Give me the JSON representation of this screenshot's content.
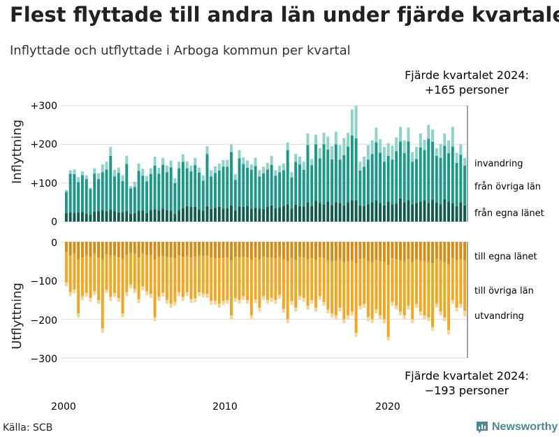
{
  "header": {
    "title": "Flest flyttade till andra län under fjärde kvartalet",
    "subtitle": "Inflyttade och utflyttade i Arboga kommun per kvartal"
  },
  "footer": {
    "source": "Källa: SCB",
    "brand": "Newsworthy"
  },
  "colors": {
    "in_local": "#0f5c4d",
    "in_other": "#1a9987",
    "in_abroad": "#8fd3c8",
    "out_local": "#d98a10",
    "out_other": "#f6a51e",
    "out_abroad": "#fbd38f",
    "grid": "#d9d9d9",
    "text": "#222222",
    "brand": "#4c8a8d"
  },
  "chart_data": {
    "type": "bar",
    "stacked": true,
    "x_label": "",
    "x_ticks": [
      "2000",
      "2010",
      "2020"
    ],
    "period": "2000Q1–2024Q4",
    "panels": [
      {
        "name": "inflyttning",
        "ylabel": "Inflyttning",
        "ylim": [
          0,
          300
        ],
        "y_ticks": [
          "0",
          "+100",
          "+200",
          "+300"
        ],
        "y_tick_values": [
          0,
          100,
          200,
          300
        ],
        "series_labels": [
          "från egna länet",
          "från övriga län",
          "invandring"
        ],
        "annotation_line1": "Fjärde kvartalet 2024:",
        "annotation_line2": "+165 personer",
        "totals": [
          82,
          133,
          135,
          115,
          130,
          120,
          88,
          138,
          125,
          148,
          155,
          193,
          134,
          140,
          120,
          170,
          92,
          103,
          150,
          137,
          118,
          138,
          168,
          139,
          165,
          145,
          158,
          112,
          155,
          174,
          156,
          145,
          165,
          140,
          120,
          195,
          133,
          143,
          150,
          159,
          160,
          200,
          123,
          185,
          166,
          158,
          148,
          165,
          133,
          142,
          152,
          170,
          133,
          145,
          150,
          205,
          128,
          175,
          168,
          155,
          228,
          162,
          225,
          190,
          230,
          220,
          195,
          232,
          198,
          216,
          230,
          290,
          300,
          155,
          168,
          198,
          210,
          243,
          213,
          193,
          203,
          196,
          218,
          245,
          210,
          243,
          180,
          193,
          228,
          212,
          250,
          238,
          190,
          200,
          228,
          210,
          245,
          178,
          200,
          165
        ],
        "local": [
          22,
          24,
          23,
          24,
          25,
          20,
          18,
          26,
          27,
          30,
          27,
          32,
          27,
          24,
          25,
          27,
          20,
          22,
          28,
          29,
          22,
          30,
          32,
          29,
          34,
          30,
          28,
          20,
          30,
          35,
          40,
          38,
          38,
          31,
          28,
          40,
          33,
          36,
          38,
          34,
          35,
          42,
          28,
          40,
          38,
          41,
          34,
          36,
          34,
          33,
          39,
          42,
          35,
          37,
          41,
          45,
          34,
          44,
          40,
          39,
          50,
          41,
          54,
          48,
          45,
          52,
          43,
          50,
          48,
          42,
          50,
          55,
          55,
          42,
          40,
          45,
          50,
          55,
          48,
          42,
          52,
          45,
          47,
          60,
          50,
          55,
          45,
          48,
          52,
          55,
          48,
          56,
          50,
          45,
          58,
          52,
          47,
          40,
          50,
          42
        ],
        "other": [
          55,
          100,
          100,
          78,
          95,
          90,
          66,
          98,
          83,
          98,
          108,
          138,
          90,
          102,
          80,
          122,
          66,
          68,
          103,
          90,
          82,
          93,
          113,
          95,
          113,
          98,
          112,
          80,
          108,
          120,
          98,
          92,
          108,
          96,
          78,
          135,
          84,
          90,
          94,
          108,
          107,
          138,
          80,
          124,
          111,
          98,
          100,
          108,
          83,
          92,
          96,
          105,
          84,
          91,
          92,
          140,
          80,
          111,
          108,
          95,
          148,
          105,
          146,
          116,
          155,
          134,
          118,
          150,
          112,
          130,
          144,
          168,
          160,
          90,
          102,
          115,
          125,
          150,
          130,
          113,
          118,
          115,
          135,
          147,
          127,
          152,
          110,
          114,
          140,
          130,
          166,
          150,
          120,
          120,
          138,
          125,
          147,
          112,
          123,
          103
        ],
        "abroad": [
          5,
          9,
          12,
          13,
          10,
          10,
          4,
          14,
          15,
          20,
          20,
          23,
          17,
          14,
          15,
          21,
          6,
          13,
          19,
          18,
          14,
          15,
          23,
          15,
          18,
          17,
          18,
          12,
          17,
          19,
          18,
          15,
          19,
          13,
          14,
          20,
          16,
          17,
          18,
          17,
          18,
          20,
          15,
          21,
          17,
          19,
          14,
          21,
          16,
          17,
          17,
          23,
          14,
          17,
          17,
          20,
          14,
          20,
          20,
          21,
          30,
          16,
          25,
          26,
          30,
          34,
          34,
          32,
          38,
          44,
          36,
          67,
          85,
          23,
          26,
          38,
          35,
          38,
          35,
          38,
          33,
          36,
          36,
          38,
          33,
          36,
          25,
          31,
          36,
          27,
          36,
          32,
          20,
          35,
          32,
          33,
          51,
          26,
          27,
          20
        ]
      },
      {
        "name": "utflyttning",
        "ylabel": "Utflyttning",
        "ylim": [
          -300,
          0
        ],
        "y_ticks": [
          "0",
          "−100",
          "−200",
          "−300"
        ],
        "y_tick_values": [
          0,
          -100,
          -200,
          -300
        ],
        "series_labels": [
          "till egna länet",
          "till övriga län",
          "utvandring"
        ],
        "annotation_line1": "Fjärde kvartalet 2024:",
        "annotation_line2": "−193 personer",
        "totals": [
          -115,
          -140,
          -133,
          -195,
          -150,
          -142,
          -155,
          -137,
          -160,
          -235,
          -132,
          -152,
          -142,
          -155,
          -195,
          -140,
          -120,
          -132,
          -158,
          -125,
          -138,
          -145,
          -205,
          -152,
          -141,
          -160,
          -170,
          -165,
          -140,
          -152,
          -140,
          -158,
          -156,
          -140,
          -143,
          -145,
          -162,
          -162,
          -170,
          -163,
          -160,
          -200,
          -155,
          -160,
          -150,
          -160,
          -200,
          -158,
          -180,
          -150,
          -160,
          -155,
          -160,
          -147,
          -183,
          -210,
          -163,
          -180,
          -150,
          -155,
          -175,
          -160,
          -180,
          -150,
          -165,
          -185,
          -195,
          -200,
          -180,
          -210,
          -200,
          -190,
          -245,
          -175,
          -170,
          -205,
          -210,
          -185,
          -200,
          -210,
          -255,
          -165,
          -175,
          -190,
          -200,
          -175,
          -210,
          -170,
          -190,
          -200,
          -205,
          -230,
          -170,
          -190,
          -205,
          -240,
          -160,
          -180,
          -170,
          -193
        ],
        "local": [
          -25,
          -35,
          -30,
          -45,
          -40,
          -35,
          -38,
          -30,
          -40,
          -45,
          -32,
          -35,
          -35,
          -40,
          -45,
          -34,
          -28,
          -30,
          -40,
          -30,
          -34,
          -35,
          -45,
          -38,
          -36,
          -38,
          -40,
          -42,
          -35,
          -38,
          -36,
          -40,
          -38,
          -35,
          -36,
          -36,
          -40,
          -42,
          -42,
          -41,
          -40,
          -48,
          -38,
          -40,
          -39,
          -40,
          -45,
          -40,
          -45,
          -38,
          -40,
          -40,
          -42,
          -38,
          -45,
          -50,
          -42,
          -46,
          -38,
          -40,
          -45,
          -42,
          -46,
          -40,
          -42,
          -48,
          -50,
          -50,
          -46,
          -52,
          -50,
          -48,
          -55,
          -44,
          -43,
          -50,
          -52,
          -47,
          -50,
          -52,
          -60,
          -42,
          -45,
          -48,
          -50,
          -44,
          -52,
          -45,
          -48,
          -50,
          -52,
          -55,
          -44,
          -48,
          -52,
          -58,
          -42,
          -46,
          -44,
          -48
        ],
        "other": [
          -80,
          -95,
          -93,
          -140,
          -100,
          -97,
          -107,
          -98,
          -110,
          -178,
          -92,
          -107,
          -97,
          -105,
          -140,
          -96,
          -82,
          -92,
          -108,
          -85,
          -94,
          -100,
          -150,
          -104,
          -95,
          -112,
          -120,
          -113,
          -95,
          -104,
          -94,
          -108,
          -108,
          -95,
          -97,
          -99,
          -112,
          -110,
          -118,
          -112,
          -110,
          -142,
          -107,
          -110,
          -101,
          -110,
          -145,
          -108,
          -125,
          -102,
          -110,
          -105,
          -108,
          -99,
          -128,
          -150,
          -111,
          -124,
          -102,
          -105,
          -120,
          -108,
          -124,
          -100,
          -113,
          -127,
          -135,
          -140,
          -124,
          -148,
          -140,
          -132,
          -180,
          -121,
          -117,
          -144,
          -148,
          -128,
          -140,
          -148,
          -185,
          -113,
          -120,
          -132,
          -140,
          -121,
          -148,
          -115,
          -132,
          -140,
          -143,
          -165,
          -116,
          -132,
          -143,
          -170,
          -108,
          -124,
          -116,
          -130
        ],
        "abroad": [
          -10,
          -10,
          -10,
          -10,
          -10,
          -10,
          -10,
          -9,
          -10,
          -12,
          -8,
          -10,
          -10,
          -10,
          -10,
          -10,
          -10,
          -10,
          -10,
          -10,
          -10,
          -10,
          -10,
          -10,
          -10,
          -10,
          -10,
          -10,
          -10,
          -10,
          -10,
          -10,
          -10,
          -10,
          -10,
          -10,
          -10,
          -10,
          -10,
          -10,
          -10,
          -10,
          -10,
          -10,
          -10,
          -10,
          -10,
          -10,
          -10,
          -10,
          -10,
          -10,
          -10,
          -10,
          -10,
          -10,
          -10,
          -10,
          -10,
          -10,
          -10,
          -10,
          -10,
          -10,
          -10,
          -10,
          -10,
          -10,
          -10,
          -10,
          -10,
          -10,
          -10,
          -10,
          -10,
          -11,
          -10,
          -10,
          -10,
          -10,
          -10,
          -10,
          -10,
          -10,
          -10,
          -10,
          -10,
          -10,
          -10,
          -10,
          -10,
          -10,
          -10,
          -10,
          -10,
          -12,
          -10,
          -10,
          -10,
          -15
        ]
      }
    ]
  }
}
